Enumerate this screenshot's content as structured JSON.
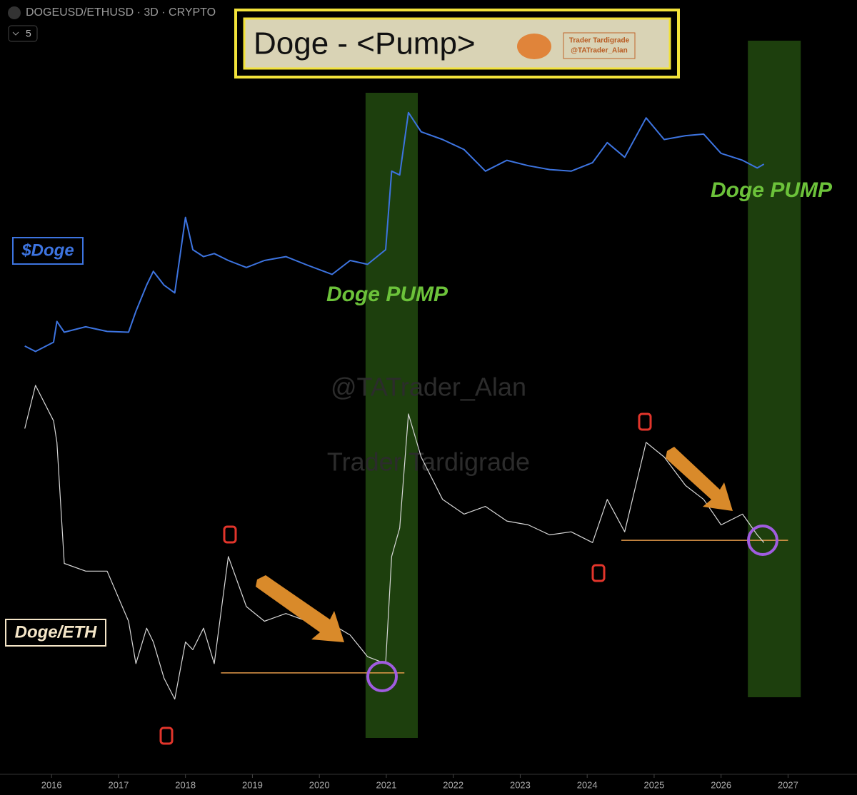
{
  "header": {
    "symbol": "DOGEUSD/ETHUSD · 3D · CRYPTO",
    "interval_badge": "5"
  },
  "chart_data": {
    "type": "line",
    "title": "Doge - <Pump>",
    "logo_text": [
      "Trader Tardigrade",
      "@TATrader_Alan"
    ],
    "watermarks": [
      "@TATrader_Alan",
      "Trader Tardigrade"
    ],
    "annotations": [
      "Doge PUMP",
      "Doge PUMP"
    ],
    "x": [
      2015.6,
      2015.76,
      2016.03,
      2016.08,
      2016.19,
      2016.51,
      2016.83,
      2017.15,
      2017.26,
      2017.42,
      2017.52,
      2017.68,
      2017.84,
      2018.0,
      2018.11,
      2018.27,
      2018.43,
      2018.64,
      2018.91,
      2019.18,
      2019.5,
      2019.82,
      2020.19,
      2020.46,
      2020.72,
      2020.99,
      2021.08,
      2021.2,
      2021.33,
      2021.52,
      2021.84,
      2022.16,
      2022.48,
      2022.8,
      2023.12,
      2023.44,
      2023.76,
      2024.08,
      2024.3,
      2024.56,
      2024.88,
      2025.15,
      2025.47,
      2025.74,
      2026.0,
      2026.32,
      2026.54,
      2026.64
    ],
    "series": [
      {
        "name": "$Doge",
        "color": "#3d74e0",
        "values": [
          55.1,
          54.4,
          55.6,
          58.3,
          56.9,
          57.6,
          57.0,
          56.9,
          59.6,
          63.0,
          64.8,
          63.0,
          62.0,
          71.8,
          67.6,
          66.7,
          67.1,
          66.2,
          65.3,
          66.2,
          66.7,
          65.6,
          64.4,
          66.2,
          65.7,
          67.6,
          77.8,
          77.3,
          85.4,
          82.9,
          81.9,
          80.6,
          77.8,
          79.2,
          78.5,
          78.0,
          77.8,
          78.9,
          81.5,
          79.6,
          84.7,
          81.9,
          82.4,
          82.6,
          80.1,
          79.2,
          78.2,
          78.7
        ]
      },
      {
        "name": "Doge/ETH",
        "color": "#d8d8d8",
        "values": [
          44.4,
          50.0,
          45.4,
          42.6,
          26.9,
          25.9,
          25.9,
          19.4,
          13.9,
          18.5,
          16.7,
          12.0,
          9.3,
          16.7,
          15.7,
          18.5,
          13.9,
          27.8,
          21.3,
          19.4,
          20.4,
          19.4,
          19.0,
          17.6,
          14.8,
          13.9,
          27.8,
          31.5,
          46.3,
          40.7,
          35.2,
          33.3,
          34.3,
          32.4,
          31.9,
          30.6,
          31.0,
          29.6,
          35.2,
          31.0,
          42.6,
          40.7,
          37.0,
          35.2,
          31.9,
          33.3,
          30.6,
          29.6
        ]
      }
    ],
    "highlights": [
      [
        2020.69,
        2021.47
      ],
      [
        2026.4,
        2027.19
      ]
    ],
    "highlight_color": "#1d3f0d",
    "support_lines": [
      {
        "x": [
          2018.53,
          2021.27
        ],
        "value": 12.7
      },
      {
        "x": [
          2024.51,
          2027.0
        ],
        "value": 29.9
      }
    ],
    "support_color": "#e39a4a",
    "xlim": [
      2015.23,
      2028.03
    ],
    "xticks": [
      2016,
      2017,
      2018,
      2019,
      2020,
      2021,
      2022,
      2023,
      2024,
      2025,
      2026,
      2027
    ],
    "ylim": [
      0,
      100
    ]
  }
}
